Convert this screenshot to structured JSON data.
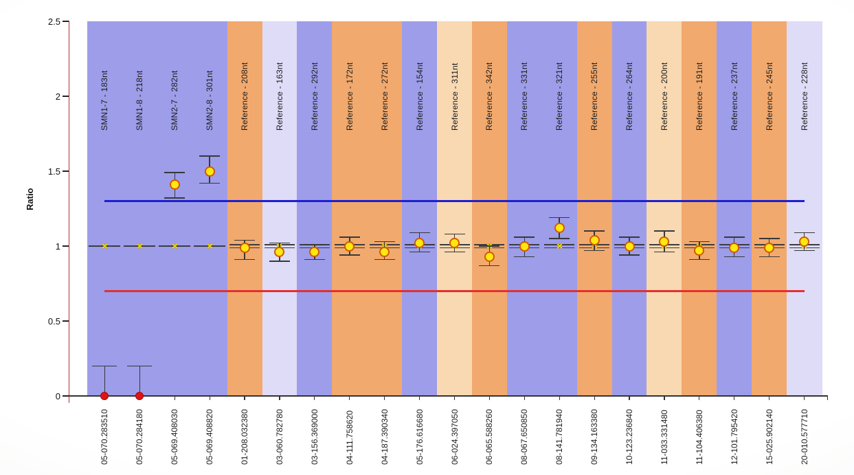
{
  "chart_data": {
    "type": "scatter",
    "title": "",
    "ylabel": "Ratio",
    "xlabel": "",
    "ylim": [
      0,
      2.5
    ],
    "yticks": [
      "0",
      "0.5",
      "1",
      "1.5",
      "2",
      "2.5"
    ],
    "grid": false,
    "legend": "none",
    "normal_reference_ratio": 1.0,
    "limit_lines": {
      "upper": {
        "value": 1.3,
        "color": "#1f1fd0"
      },
      "lower": {
        "value": 0.7,
        "color": "#e23030"
      }
    },
    "band_colors": {
      "blue": "#9d9dea",
      "orange": "#f2a96d",
      "lavender": "#dedcf7",
      "peach": "#f8d9b2"
    },
    "marker_colors": {
      "yellow_circle_fill": "#ffe70f",
      "yellow_circle_border": "#d05a00",
      "red_dot_fill": "#e11414",
      "x_mark": "#f2d800"
    },
    "points": [
      {
        "probe": "SMN1-7 - 183nt",
        "position": "05-070.283510",
        "band": "blue",
        "marker": "red-dot",
        "value": 0,
        "err_low": 0,
        "err_high": 0.2,
        "ref_line": "single"
      },
      {
        "probe": "SMN1-8 - 218nt",
        "position": "05-070.284180",
        "band": "blue",
        "marker": "red-dot",
        "value": 0,
        "err_low": 0,
        "err_high": 0.2,
        "ref_line": "single"
      },
      {
        "probe": "SMN2-7 - 282nt",
        "position": "05-069.408030",
        "band": "blue",
        "marker": "yellow-circle",
        "value": 1.41,
        "err_low": 1.32,
        "err_high": 1.49,
        "ref_line": "single"
      },
      {
        "probe": "SMN2-8 - 301nt",
        "position": "05-069.408820",
        "band": "blue",
        "marker": "yellow-circle",
        "value": 1.5,
        "err_low": 1.42,
        "err_high": 1.6,
        "ref_line": "single"
      },
      {
        "probe": "Reference - 208nt",
        "position": "01-208.032380",
        "band": "orange",
        "marker": "yellow-circle",
        "value": 0.99,
        "err_low": 0.91,
        "err_high": 1.04,
        "ref_line": "double"
      },
      {
        "probe": "Reference - 163nt",
        "position": "03-060.782780",
        "band": "lavender",
        "marker": "yellow-circle",
        "value": 0.96,
        "err_low": 0.9,
        "err_high": 1.02,
        "ref_line": "double"
      },
      {
        "probe": "Reference - 292nt",
        "position": "03-156.369000",
        "band": "blue",
        "marker": "yellow-circle",
        "value": 0.96,
        "err_low": 0.91,
        "err_high": 1.01,
        "ref_line": "double"
      },
      {
        "probe": "Reference - 172nt",
        "position": "04-111.758620",
        "band": "orange",
        "marker": "yellow-circle",
        "value": 1.0,
        "err_low": 0.94,
        "err_high": 1.06,
        "ref_line": "double"
      },
      {
        "probe": "Reference - 272nt",
        "position": "04-187.390340",
        "band": "orange",
        "marker": "yellow-circle",
        "value": 0.96,
        "err_low": 0.91,
        "err_high": 1.03,
        "ref_line": "double"
      },
      {
        "probe": "Reference - 154nt",
        "position": "05-176.616680",
        "band": "blue",
        "marker": "yellow-circle",
        "value": 1.02,
        "err_low": 0.96,
        "err_high": 1.09,
        "ref_line": "double"
      },
      {
        "probe": "Reference - 311nt",
        "position": "06-024.397050",
        "band": "peach",
        "marker": "yellow-circle",
        "value": 1.02,
        "err_low": 0.96,
        "err_high": 1.08,
        "ref_line": "double"
      },
      {
        "probe": "Reference - 342nt",
        "position": "06-065.588260",
        "band": "orange",
        "marker": "yellow-circle",
        "value": 0.93,
        "err_low": 0.87,
        "err_high": 1.0,
        "ref_line": "double"
      },
      {
        "probe": "Reference - 331nt",
        "position": "08-067.650850",
        "band": "blue",
        "marker": "yellow-circle",
        "value": 1.0,
        "err_low": 0.93,
        "err_high": 1.06,
        "ref_line": "double"
      },
      {
        "probe": "Reference - 321nt",
        "position": "08-141.781940",
        "band": "blue",
        "marker": "yellow-circle",
        "value": 1.12,
        "err_low": 1.05,
        "err_high": 1.19,
        "ref_line": "double"
      },
      {
        "probe": "Reference - 255nt",
        "position": "09-134.163380",
        "band": "orange",
        "marker": "yellow-circle",
        "value": 1.04,
        "err_low": 0.97,
        "err_high": 1.1,
        "ref_line": "double"
      },
      {
        "probe": "Reference - 264nt",
        "position": "10-123.236840",
        "band": "blue",
        "marker": "yellow-circle",
        "value": 1.0,
        "err_low": 0.94,
        "err_high": 1.06,
        "ref_line": "double"
      },
      {
        "probe": "Reference - 200nt",
        "position": "11-033.331480",
        "band": "peach",
        "marker": "yellow-circle",
        "value": 1.03,
        "err_low": 0.96,
        "err_high": 1.1,
        "ref_line": "double"
      },
      {
        "probe": "Reference - 191nt",
        "position": "11-104.406380",
        "band": "orange",
        "marker": "yellow-circle",
        "value": 0.97,
        "err_low": 0.91,
        "err_high": 1.03,
        "ref_line": "double"
      },
      {
        "probe": "Reference - 237nt",
        "position": "12-101.795420",
        "band": "blue",
        "marker": "yellow-circle",
        "value": 0.99,
        "err_low": 0.93,
        "err_high": 1.06,
        "ref_line": "double"
      },
      {
        "probe": "Reference - 245nt",
        "position": "15-025.902140",
        "band": "orange",
        "marker": "yellow-circle",
        "value": 0.99,
        "err_low": 0.93,
        "err_high": 1.05,
        "ref_line": "double"
      },
      {
        "probe": "Reference - 228nt",
        "position": "20-010.577710",
        "band": "lavender",
        "marker": "yellow-circle",
        "value": 1.03,
        "err_low": 0.97,
        "err_high": 1.09,
        "ref_line": "double"
      }
    ]
  }
}
